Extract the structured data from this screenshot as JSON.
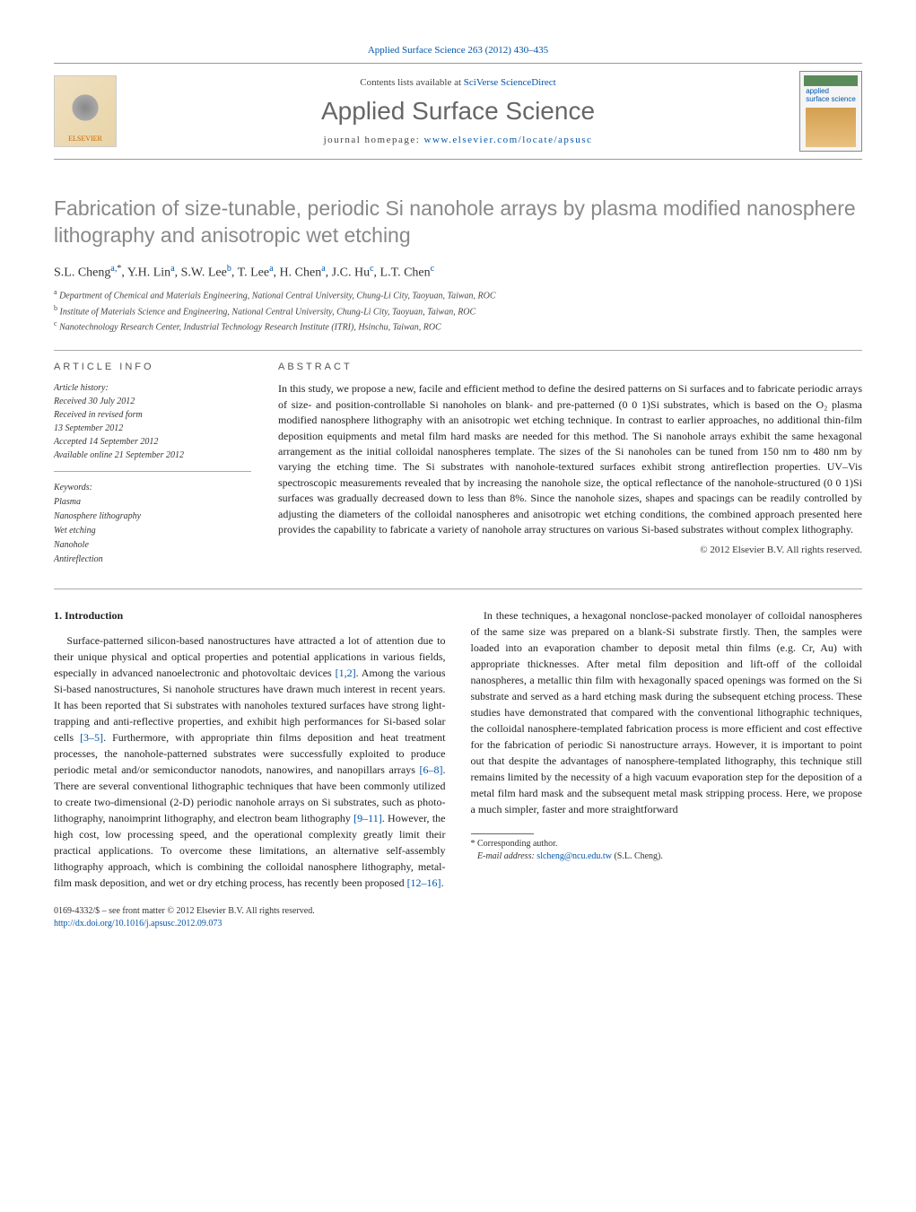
{
  "colors": {
    "link": "#0055aa",
    "text": "#1a1a1a",
    "muted": "#555",
    "title_gray": "#888",
    "rule": "#aaa",
    "background": "#ffffff",
    "elsevier_orange": "#cc6600",
    "cover_green": "#5a8a5a"
  },
  "typography": {
    "body_family": "Georgia, 'Times New Roman', serif",
    "heading_family": "Arial, sans-serif",
    "title_fontsize": 23,
    "journal_fontsize": 28,
    "body_fontsize": 12,
    "small_fontsize": 10
  },
  "header": {
    "citation_prefix": "Applied Surface Science 263 (2012) 430–435",
    "contents_text": "Contents lists available at ",
    "contents_link": "SciVerse ScienceDirect",
    "journal_title": "Applied Surface Science",
    "homepage_prefix": "journal homepage: ",
    "homepage_link": "www.elsevier.com/locate/apsusc",
    "elsevier_label": "ELSEVIER",
    "cover_line1": "applied",
    "cover_line2": "surface science"
  },
  "article": {
    "title": "Fabrication of size-tunable, periodic Si nanohole arrays by plasma modified nanosphere lithography and anisotropic wet etching",
    "authors_html": "S.L. Cheng",
    "author_sup1": "a,",
    "author_star": "*",
    "authors_rest": ", Y.H. Lin",
    "sup_a": "a",
    "a3": ", S.W. Lee",
    "sup_b": "b",
    "a4": ", T. Lee",
    "a5": ", H. Chen",
    "a6": ", J.C. Hu",
    "sup_c": "c",
    "a7": ", L.T. Chen"
  },
  "affiliations": {
    "a": "Department of Chemical and Materials Engineering, National Central University, Chung-Li City, Taoyuan, Taiwan, ROC",
    "b": "Institute of Materials Science and Engineering, National Central University, Chung-Li City, Taoyuan, Taiwan, ROC",
    "c": "Nanotechnology Research Center, Industrial Technology Research Institute (ITRI), Hsinchu, Taiwan, ROC"
  },
  "article_info": {
    "heading": "article info",
    "history_label": "Article history:",
    "received": "Received 30 July 2012",
    "revised1": "Received in revised form",
    "revised2": "13 September 2012",
    "accepted": "Accepted 14 September 2012",
    "online": "Available online 21 September 2012",
    "keywords_label": "Keywords:",
    "keywords": [
      "Plasma",
      "Nanosphere lithography",
      "Wet etching",
      "Nanohole",
      "Antireflection"
    ]
  },
  "abstract": {
    "heading": "abstract",
    "text": "In this study, we propose a new, facile and efficient method to define the desired patterns on Si surfaces and to fabricate periodic arrays of size- and position-controllable Si nanoholes on blank- and pre-patterned (0 0 1)Si substrates, which is based on the O₂ plasma modified nanosphere lithography with an anisotropic wet etching technique. In contrast to earlier approaches, no additional thin-film deposition equipments and metal film hard masks are needed for this method. The Si nanohole arrays exhibit the same hexagonal arrangement as the initial colloidal nanospheres template. The sizes of the Si nanoholes can be tuned from 150 nm to 480 nm by varying the etching time. The Si substrates with nanohole-textured surfaces exhibit strong antireflection properties. UV–Vis spectroscopic measurements revealed that by increasing the nanohole size, the optical reflectance of the nanohole-structured (0 0 1)Si surfaces was gradually decreased down to less than 8%. Since the nanohole sizes, shapes and spacings can be readily controlled by adjusting the diameters of the colloidal nanospheres and anisotropic wet etching conditions, the combined approach presented here provides the capability to fabricate a variety of nanohole array structures on various Si-based substrates without complex lithography.",
    "copyright": "© 2012 Elsevier B.V. All rights reserved."
  },
  "body": {
    "section1_title": "1. Introduction",
    "p1a": "Surface-patterned silicon-based nanostructures have attracted a lot of attention due to their unique physical and optical properties and potential applications in various fields, especially in advanced nanoelectronic and photovoltaic devices ",
    "ref12": "[1,2]",
    "p1b": ". Among the various Si-based nanostructures, Si nanohole structures have drawn much interest in recent years. It has been reported that Si substrates with nanoholes textured surfaces have strong light-trapping and anti-reflective properties, and exhibit high performances for Si-based solar cells ",
    "ref35": "[3–5]",
    "p1c": ". Furthermore, with appropriate thin films deposition and heat treatment processes, the nanohole-patterned substrates were successfully exploited to produce periodic metal and/or semiconductor nanodots, nanowires, and nanopillars arrays ",
    "ref68": "[6–8]",
    "p1d": ". There are several conventional lithographic techniques that have been commonly utilized to create two-dimensional (2-D) periodic nanohole arrays on Si substrates, such as photo-lithography, nanoimprint lithography, and electron beam lithography ",
    "ref911": "[9–11]",
    "p1e": ". However, the high cost, low processing ",
    "p2a": "speed, and the operational complexity greatly limit their practical applications. To overcome these limitations, an alternative self-assembly lithography approach, which is combining the colloidal nanosphere lithography, metal-film mask deposition, and wet or dry etching process, has recently been proposed ",
    "ref1216": "[12–16]",
    "p2b": ".",
    "p3a": "In these techniques, a hexagonal nonclose-packed monolayer of colloidal nanospheres of the same size was prepared on a blank-Si substrate firstly. Then, the samples were loaded into an evaporation chamber to deposit metal thin films (e.g. Cr, Au) with appropriate thicknesses. After metal film deposition and lift-off of the colloidal nanospheres, a metallic thin film with hexagonally spaced openings was formed on the Si substrate and served as a hard etching mask during the subsequent etching process. These studies have demonstrated that compared with the conventional lithographic techniques, the colloidal nanosphere-templated fabrication process is more efficient and cost effective for the fabrication of periodic Si nanostructure arrays. However, it is important to point out that despite the advantages of nanosphere-templated lithography, this technique still remains limited by the necessity of a high vacuum evaporation step for the deposition of a metal film hard mask and the subsequent metal mask stripping process. Here, we propose a much simpler, faster and more straightforward"
  },
  "footnote": {
    "corr_label": "Corresponding author.",
    "email_label": "E-mail address:",
    "email": "slcheng@ncu.edu.tw",
    "email_suffix": "(S.L. Cheng)."
  },
  "footer": {
    "line1": "0169-4332/$ – see front matter © 2012 Elsevier B.V. All rights reserved.",
    "doi": "http://dx.doi.org/10.1016/j.apsusc.2012.09.073"
  }
}
